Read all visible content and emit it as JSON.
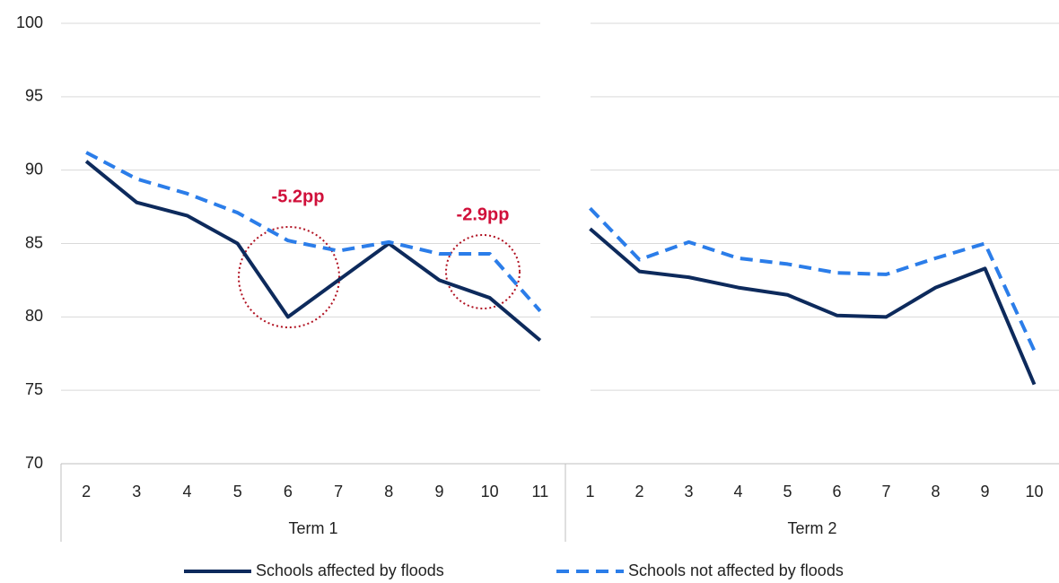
{
  "chart_data": {
    "type": "line",
    "groups": [
      {
        "name": "Term 1",
        "categories": [
          2,
          3,
          4,
          5,
          6,
          7,
          8,
          9,
          10,
          11
        ]
      },
      {
        "name": "Term 2",
        "categories": [
          1,
          2,
          3,
          4,
          5,
          6,
          7,
          8,
          9,
          10
        ]
      }
    ],
    "series": [
      {
        "name": "Schools affected by floods",
        "color": "#0d2a5c",
        "dash": false,
        "values": [
          [
            90.6,
            87.8,
            86.9,
            85.0,
            80.0,
            82.5,
            85.0,
            82.5,
            81.3,
            78.4
          ],
          [
            86.0,
            83.1,
            82.7,
            82.0,
            81.5,
            80.1,
            80.0,
            82.0,
            83.3,
            75.4
          ]
        ]
      },
      {
        "name": "Schools not affected by floods",
        "color": "#2b7de9",
        "dash": true,
        "values": [
          [
            91.2,
            89.4,
            88.4,
            87.1,
            85.2,
            84.5,
            85.1,
            84.3,
            84.3,
            80.4
          ],
          [
            87.4,
            83.9,
            85.1,
            84.0,
            83.6,
            83.0,
            82.9,
            84.0,
            85.0,
            77.7
          ]
        ]
      }
    ],
    "annotations": [
      "-5.2pp",
      "-2.9pp"
    ],
    "ylim": [
      70,
      100
    ],
    "yticks": [
      70,
      75,
      80,
      85,
      90,
      95,
      100
    ],
    "grid": true
  }
}
